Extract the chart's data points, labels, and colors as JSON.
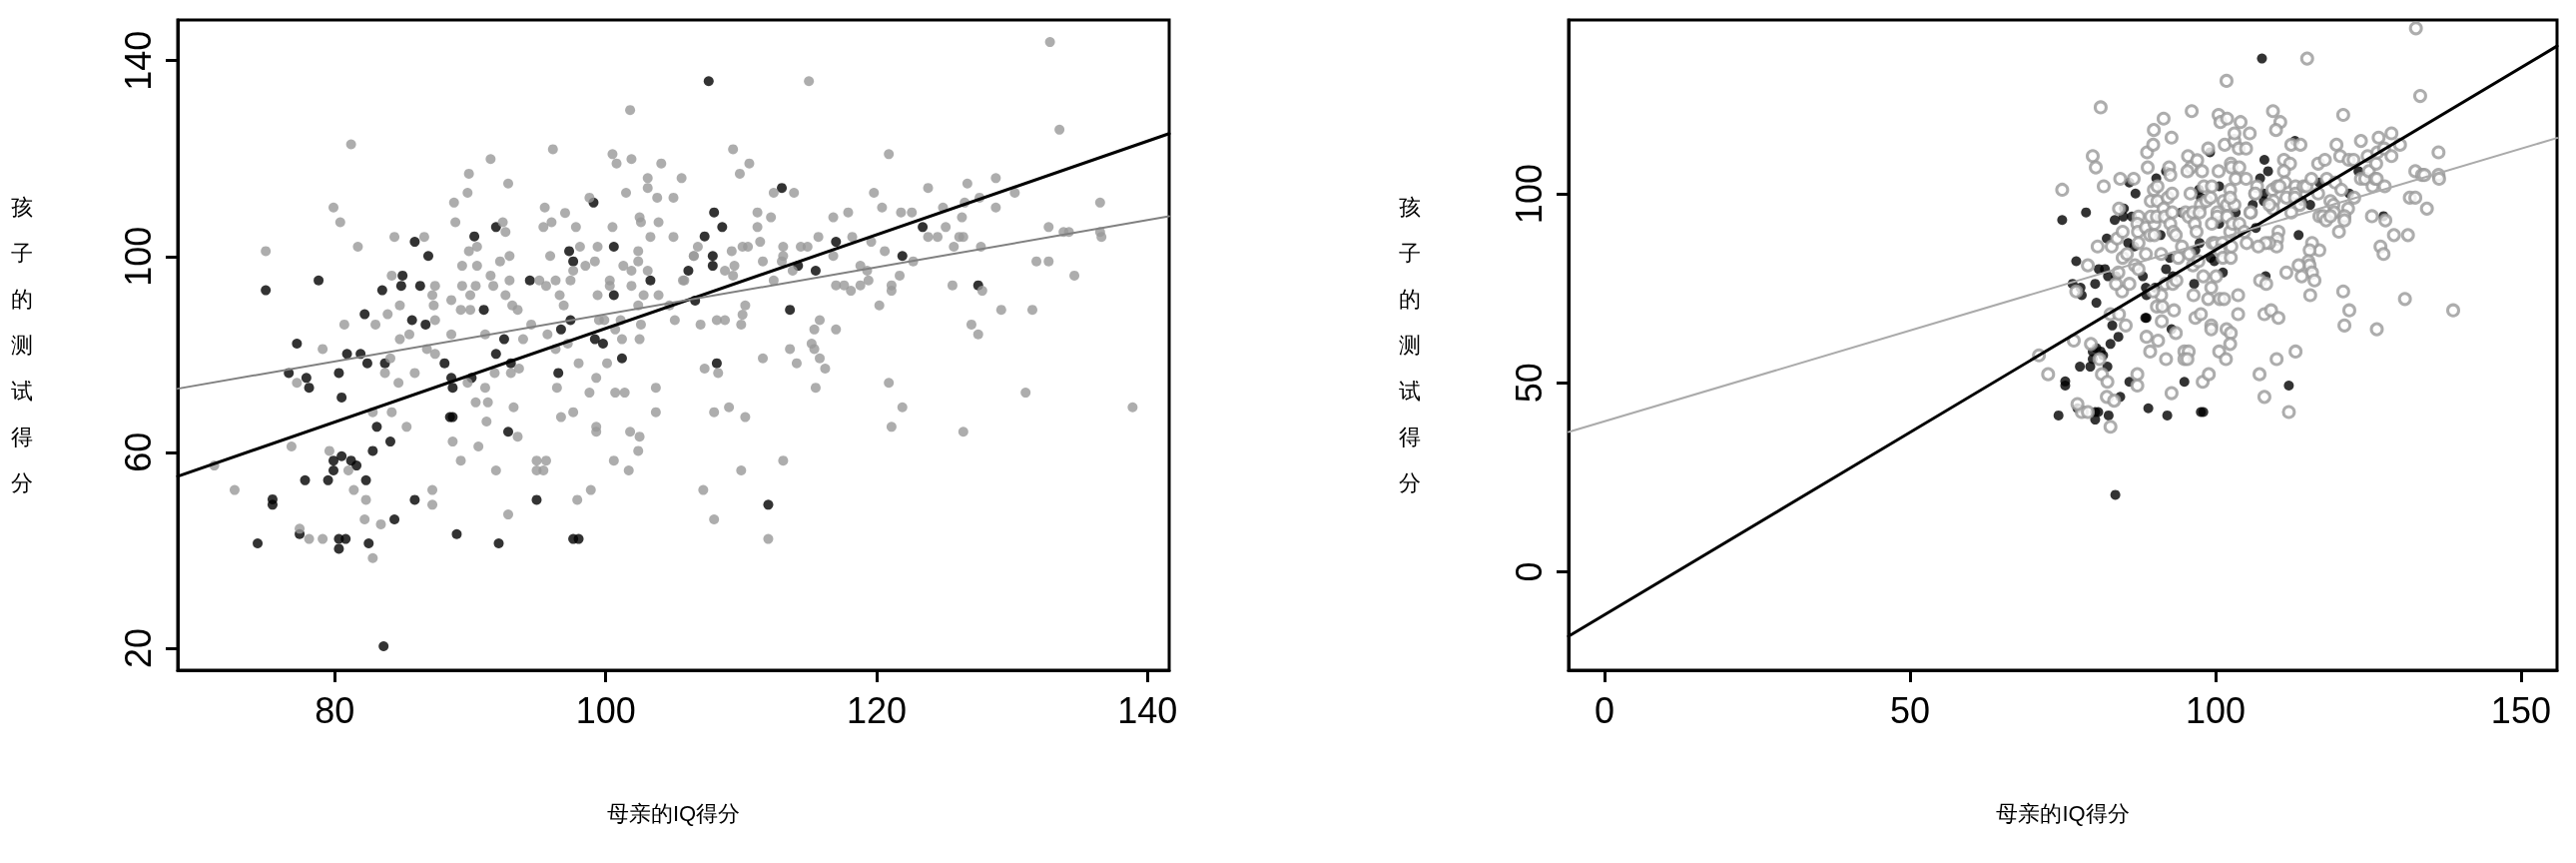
{
  "chart_data": [
    {
      "type": "scatter",
      "xlabel": "母亲的IQ得分",
      "ylabel": "孩子的测试得分",
      "xlim": [
        68.4,
        141.6
      ],
      "ylim": [
        15.5,
        148.3
      ],
      "xticks": [
        80,
        100,
        120,
        140
      ],
      "yticks": [
        20,
        60,
        100,
        140
      ],
      "marker": "circle",
      "series": [
        {
          "color": "#000000",
          "x": [
            74.9,
            78.8,
            77.2,
            76.6,
            77.9,
            78.1,
            80.3,
            80.5,
            80.9,
            81.9,
            82.4,
            82.2,
            83.5,
            83.7,
            85.0,
            84.9,
            85.9,
            86.9,
            86.3,
            85.7,
            86.7,
            83.1,
            84.1,
            82.8,
            79.9,
            80.5,
            81.2,
            81.6,
            79.9,
            79.5,
            77.8,
            82.3,
            75.4,
            75.4,
            74.3,
            77.4,
            80.3,
            80.8,
            80.3,
            82.5,
            84.4,
            85.9,
            83.6,
            88.1,
            88.6,
            88.7,
            88.5,
            88.7,
            90.1,
            90.3,
            91.9,
            91.0,
            92.5,
            91.9,
            93.0,
            92.8,
            89.0,
            92.1,
            94.4,
            94.9,
            96.5,
            96.7,
            97.4,
            97.3,
            97.6,
            97.6,
            98.0,
            99.1,
            99.2,
            99.8,
            100.6,
            100.6,
            101.2,
            103.3,
            106.1,
            106.6,
            107.6,
            113.0,
            108.0,
            108.6,
            107.3,
            107.9,
            107.9,
            114.2,
            115.5,
            117.0,
            113.6,
            108.2,
            112.0,
            121.9,
            123.4,
            127.5
          ],
          "values": [
            93.1,
            95.1,
            82.2,
            76.2,
            75.2,
            73.2,
            76.2,
            71.2,
            80.1,
            80.1,
            78.2,
            88.2,
            93.1,
            78.2,
            96.1,
            94.0,
            103.0,
            100.1,
            94.0,
            87.0,
            86.1,
            65.2,
            62.2,
            60.3,
            58.3,
            59.2,
            58.3,
            57.3,
            56.3,
            54.3,
            54.3,
            54.3,
            50.4,
            49.3,
            41.4,
            43.3,
            42.3,
            42.3,
            40.3,
            41.4,
            46.3,
            50.3,
            20.4,
            78.2,
            75.2,
            73.2,
            67.2,
            67.2,
            75.2,
            104.1,
            106.0,
            89.1,
            83.1,
            80.1,
            78.2,
            64.2,
            43.3,
            41.4,
            95.1,
            50.3,
            76.2,
            85.1,
            87.0,
            101.1,
            99.0,
            42.3,
            42.3,
            111.0,
            83.1,
            82.2,
            102.0,
            92.1,
            79.2,
            95.1,
            97.1,
            91.0,
            135.8,
            114.0,
            109.0,
            106.0,
            104.1,
            100.1,
            98.1,
            98.1,
            97.1,
            103.0,
            89.1,
            78.2,
            49.3,
            100.1,
            106.0,
            94.1
          ]
        },
        {
          "color": "#999999",
          "x": [
            71.1,
            72.6,
            74.9,
            76.8,
            77.2,
            79.1,
            79.9,
            80.4,
            81.2,
            81.7,
            80.7,
            79.6,
            81.0,
            81.4,
            82.3,
            82.2,
            82.8,
            78.1,
            79.1,
            77.4,
            83.4,
            82.8,
            84.2,
            85.3,
            84.7,
            85.9,
            83.7,
            84.1,
            84.8,
            85.5,
            83.0,
            83.9,
            84.8,
            84.2,
            84.4,
            86.6,
            87.4,
            87.2,
            87.3,
            88.6,
            87.4,
            86.8,
            87.4,
            87.2,
            87.2,
            88.7,
            89.3,
            90.6,
            91.2,
            90.4,
            91.3,
            91.1,
            89.8,
            88.6,
            89.3,
            90.0,
            90.0,
            89.4,
            90.4,
            89.4,
            90.5,
            89.9,
            90.5,
            88.9,
            88.8,
            89.8,
            89.9,
            91.5,
            92.8,
            92.4,
            92.6,
            92.2,
            92.9,
            91.5,
            91.7,
            92.9,
            92.6,
            93.1,
            93.5,
            91.1,
            91.8,
            93.0,
            93.6,
            93.9,
            94.5,
            93.2,
            93.5,
            91.9,
            92.8,
            94.9,
            95.6,
            94.9,
            95.4,
            96.1,
            95.5,
            96.0,
            95.4,
            95.9,
            95.1,
            95.6,
            96.3,
            96.6,
            96.9,
            95.7,
            96.3,
            96.4,
            96.7,
            97.6,
            97.2,
            98.0,
            97.9,
            98.9,
            98.8,
            99.3,
            99.3,
            99.3,
            97.0,
            97.8,
            98.1,
            97.6,
            97.4,
            98.5,
            99.2,
            99.4,
            98.8,
            100.5,
            100.8,
            101.9,
            101.8,
            101.5,
            100.5,
            101.3,
            101.9,
            100.3,
            100.3,
            101.9,
            99.4,
            99.5,
            99.9,
            101.1,
            100.7,
            101.2,
            100.1,
            100.7,
            101.4,
            100.6,
            101.7,
            101.8,
            102.5,
            102.4,
            103.7,
            103.7,
            102.5,
            102.6,
            102.4,
            102.8,
            103.9,
            103.1,
            102.4,
            102.4,
            103.3,
            102.5,
            102.6,
            103.9,
            103.1,
            103.1,
            103.8,
            104.1,
            105.0,
            105.0,
            105.6,
            105.8,
            105.1,
            104.7,
            106.5,
            115.0,
            109.4,
            110.6,
            109.9,
            112.4,
            113.9,
            111.2,
            112.2,
            111.2,
            111.4,
            109.3,
            110.1,
            110.5,
            106.8,
            106.5,
            109.5,
            109.4,
            108.8,
            105.7,
            111.6,
            113.1,
            113.1,
            113.0,
            113.8,
            112.4,
            114.4,
            114.9,
            115.7,
            116.8,
            117.9,
            118.2,
            116.8,
            117.0,
            117.6,
            118.1,
            117.0,
            115.8,
            115.4,
            115.2,
            115.4,
            115.8,
            116.2,
            115.5,
            114.1,
            113.6,
            111.6,
            110.3,
            110.1,
            110.0,
            108.8,
            108.2,
            107.0,
            107.3,
            108.3,
            108.0,
            109.1,
            110.3,
            110.0,
            107.2,
            108.0,
            112.0,
            113.1,
            119.8,
            120.4,
            120.9,
            119.6,
            120.6,
            121.8,
            122.6,
            123.8,
            123.8,
            124.5,
            125.1,
            124.9,
            125.7,
            126.1,
            126.4,
            126.3,
            126.5,
            126.7,
            127.6,
            127.7,
            128.8,
            128.8,
            130.2,
            122.7,
            121.7,
            118.8,
            119.3,
            119.4,
            118.8,
            121.1,
            121.1,
            120.2,
            125.6,
            127.8,
            129.2,
            131.5,
            127.0,
            127.5,
            120.9,
            121.9,
            121.1,
            126.4,
            131.0,
            138.9,
            132.8,
            133.5,
            132.7,
            133.8,
            134.2,
            131.8,
            132.7,
            134.6,
            136.5,
            136.5,
            136.6
          ],
          "values": [
            57.3,
            52.3,
            101.1,
            61.2,
            74.2,
            81.1,
            110.0,
            107.0,
            122.9,
            102.0,
            86.1,
            60.3,
            56.3,
            52.3,
            50.3,
            46.3,
            38.4,
            42.3,
            42.3,
            44.4,
            45.3,
            68.2,
            68.2,
            65.2,
            74.2,
            76.2,
            76.2,
            79.2,
            83.1,
            84.1,
            86.1,
            88.2,
            90.0,
            96.1,
            104.0,
            104.0,
            94.0,
            92.1,
            90.0,
            91.1,
            87.0,
            81.1,
            80.1,
            52.3,
            49.3,
            62.2,
            58.3,
            61.2,
            66.3,
            70.2,
            70.2,
            73.2,
            74.2,
            84.1,
            89.1,
            89.1,
            92.1,
            94.0,
            94.0,
            98.1,
            98.1,
            101.1,
            102.0,
            107.0,
            111.0,
            113.0,
            116.9,
            119.9,
            114.9,
            107.0,
            105.0,
            99.0,
            100.1,
            96.1,
            94.0,
            95.1,
            92.1,
            90.0,
            89.1,
            84.1,
            76.2,
            76.2,
            77.1,
            83.1,
            86.1,
            69.2,
            63.2,
            56.3,
            47.3,
            58.3,
            58.3,
            56.3,
            56.3,
            121.9,
            110.0,
            107.0,
            106.0,
            100.1,
            95.1,
            94.0,
            95.1,
            92.1,
            90.0,
            84.1,
            81.1,
            73.2,
            67.2,
            68.2,
            82.2,
            78.2,
            50.3,
            52.3,
            72.2,
            75.2,
            65.2,
            64.2,
            108.9,
            106.0,
            102.0,
            97.1,
            95.1,
            98.1,
            99.0,
            102.0,
            112.0,
            120.9,
            119.0,
            119.9,
            129.9,
            113.0,
            106.0,
            98.1,
            97.1,
            95.1,
            94.0,
            94.0,
            92.1,
            87.0,
            87.0,
            87.0,
            85.1,
            83.1,
            78.2,
            72.2,
            72.2,
            58.3,
            56.3,
            64.2,
            63.2,
            60.3,
            73.2,
            68.2,
            83.1,
            86.1,
            90.0,
            92.1,
            92.1,
            97.1,
            101.1,
            99.0,
            104.0,
            108.0,
            107.0,
            107.0,
            114.0,
            116.0,
            112.0,
            119.0,
            112.0,
            104.0,
            116.0,
            95.1,
            87.0,
            90.0,
            100.1,
            135.8,
            121.9,
            119.0,
            116.9,
            113.0,
            113.0,
            109.0,
            108.0,
            106.0,
            103.0,
            101.1,
            102.0,
            102.0,
            102.0,
            100.1,
            98.1,
            96.1,
            97.1,
            95.1,
            99.0,
            102.0,
            100.1,
            99.0,
            97.1,
            95.1,
            102.0,
            102.0,
            104.0,
            108.0,
            109.0,
            104.0,
            100.1,
            94.1,
            94.1,
            93.0,
            85.1,
            87.0,
            85.1,
            82.2,
            81.1,
            79.2,
            77.1,
            73.2,
            78.2,
            81.1,
            79.2,
            90.0,
            88.1,
            86.1,
            87.0,
            87.0,
            86.1,
            77.1,
            76.2,
            68.2,
            69.2,
            67.2,
            56.3,
            52.3,
            46.3,
            42.3,
            58.3,
            113.0,
            110.0,
            120.9,
            103.0,
            101.1,
            109.0,
            109.0,
            114.0,
            104.0,
            104.0,
            106.0,
            110.0,
            102.0,
            104.0,
            104.0,
            108.0,
            111.0,
            114.9,
            112.0,
            102.0,
            116.0,
            110.0,
            113.0,
            99.0,
            96.1,
            98.1,
            97.1,
            95.1,
            94.1,
            94.1,
            93.0,
            90.0,
            94.1,
            93.0,
            89.1,
            89.1,
            86.1,
            84.1,
            74.2,
            69.2,
            65.2,
            64.2,
            72.2,
            69.2,
            143.8,
            125.9,
            106.0,
            105.0,
            105.0,
            99.0,
            99.0,
            96.1,
            111.0,
            105.0,
            104.0
          ]
        },
        {
          "type": "line",
          "marker": "none",
          "color": "#000000",
          "x": [
            68.4,
            141.6
          ],
          "values": [
            55.1,
            125.1
          ]
        },
        {
          "type": "line",
          "marker": "none",
          "color": "#808080",
          "x": [
            68.4,
            141.6
          ],
          "values": [
            73.0,
            108.2
          ]
        }
      ]
    },
    {
      "type": "scatter",
      "xlabel": "母亲的IQ得分",
      "ylabel": "孩子的测试得分",
      "xlim": [
        -5.9,
        155.9
      ],
      "ylim": [
        -26,
        146
      ],
      "xticks": [
        0,
        50,
        100,
        150
      ],
      "yticks": [
        0,
        50,
        100
      ],
      "marker": "circle",
      "series": [
        {
          "color": "#000000",
          "x": [
            74.9,
            78.8,
            77.2,
            76.6,
            77.9,
            78.1,
            80.3,
            80.5,
            80.9,
            81.9,
            82.4,
            82.2,
            83.5,
            83.7,
            85.0,
            84.9,
            85.9,
            86.9,
            86.3,
            85.7,
            86.7,
            83.1,
            84.1,
            82.8,
            79.9,
            80.5,
            81.2,
            81.6,
            79.9,
            79.5,
            77.8,
            82.3,
            75.4,
            75.4,
            74.3,
            77.4,
            80.3,
            80.8,
            80.3,
            82.5,
            84.4,
            85.9,
            83.6,
            88.1,
            88.6,
            88.7,
            88.5,
            88.7,
            90.1,
            90.3,
            91.9,
            91.0,
            92.5,
            91.9,
            93.0,
            92.8,
            89.0,
            92.1,
            94.4,
            94.9,
            96.5,
            96.7,
            97.4,
            97.3,
            97.6,
            97.6,
            98.0,
            99.1,
            99.2,
            99.8,
            100.6,
            100.6,
            101.2,
            103.3,
            106.1,
            106.6,
            107.6,
            113.0,
            108.0,
            108.6,
            107.3,
            107.9,
            107.9,
            114.2,
            115.5,
            117.0,
            113.6,
            108.2,
            112.0,
            121.9,
            123.4,
            127.5
          ],
          "values": [
            93.1,
            95.1,
            82.2,
            76.2,
            75.2,
            73.2,
            76.2,
            71.2,
            80.1,
            80.1,
            78.2,
            88.2,
            93.1,
            78.2,
            96.1,
            94.0,
            103.0,
            100.1,
            94.0,
            87.0,
            86.1,
            65.2,
            62.2,
            60.3,
            58.3,
            59.2,
            58.3,
            57.3,
            56.3,
            54.3,
            54.3,
            54.3,
            50.4,
            49.3,
            41.4,
            43.3,
            42.3,
            42.3,
            40.3,
            41.4,
            46.3,
            50.3,
            20.4,
            78.2,
            75.2,
            73.2,
            67.2,
            67.2,
            75.2,
            104.1,
            106.0,
            89.1,
            83.1,
            80.1,
            78.2,
            64.2,
            43.3,
            41.4,
            95.1,
            50.3,
            76.2,
            85.1,
            87.0,
            101.1,
            99.0,
            42.3,
            42.3,
            111.0,
            83.1,
            82.2,
            102.0,
            92.1,
            79.2,
            95.1,
            97.1,
            91.0,
            135.8,
            114.0,
            109.0,
            106.0,
            104.1,
            100.1,
            98.1,
            98.1,
            97.1,
            103.0,
            89.1,
            78.2,
            49.3,
            100.1,
            106.0,
            94.1
          ]
        },
        {
          "color": "#999999",
          "x": [
            71.1,
            72.6,
            74.9,
            76.8,
            77.2,
            79.1,
            79.9,
            80.4,
            81.2,
            81.7,
            80.7,
            79.6,
            81.0,
            81.4,
            82.3,
            82.2,
            82.8,
            78.1,
            79.1,
            77.4,
            83.4,
            82.8,
            84.2,
            85.3,
            84.7,
            85.9,
            83.7,
            84.1,
            84.8,
            85.5,
            83.0,
            83.9,
            84.8,
            84.2,
            84.4,
            86.6,
            87.4,
            87.2,
            87.3,
            88.6,
            87.4,
            86.8,
            87.4,
            87.2,
            87.2,
            88.7,
            89.3,
            90.6,
            91.2,
            90.4,
            91.3,
            91.1,
            89.8,
            88.6,
            89.3,
            90.0,
            90.0,
            89.4,
            90.4,
            89.4,
            90.5,
            89.9,
            90.5,
            88.9,
            88.8,
            89.8,
            89.9,
            91.5,
            92.8,
            92.4,
            92.6,
            92.2,
            92.9,
            91.5,
            91.7,
            92.9,
            92.6,
            93.1,
            93.5,
            91.1,
            91.8,
            93.0,
            93.6,
            93.9,
            94.5,
            93.2,
            93.5,
            91.9,
            92.8,
            94.9,
            95.6,
            94.9,
            95.4,
            96.1,
            95.5,
            96.0,
            95.4,
            95.9,
            95.1,
            95.6,
            96.3,
            96.6,
            96.9,
            95.7,
            96.3,
            96.4,
            96.7,
            97.6,
            97.2,
            98.0,
            97.9,
            98.9,
            98.8,
            99.3,
            99.3,
            99.3,
            97.0,
            97.8,
            98.1,
            97.6,
            97.4,
            98.5,
            99.2,
            99.4,
            98.8,
            100.5,
            100.8,
            101.9,
            101.8,
            101.5,
            100.5,
            101.3,
            101.9,
            100.3,
            100.3,
            101.9,
            99.4,
            99.5,
            99.9,
            101.1,
            100.7,
            101.2,
            100.1,
            100.7,
            101.4,
            100.6,
            101.7,
            101.8,
            102.5,
            102.4,
            103.7,
            103.7,
            102.5,
            102.6,
            102.4,
            102.8,
            103.9,
            103.1,
            102.4,
            102.4,
            103.3,
            102.5,
            102.6,
            103.9,
            103.1,
            103.1,
            103.8,
            104.1,
            105.0,
            105.0,
            105.6,
            105.8,
            105.1,
            104.7,
            106.5,
            115.0,
            109.4,
            110.6,
            109.9,
            112.4,
            113.9,
            111.2,
            112.2,
            111.2,
            111.4,
            109.3,
            110.1,
            110.5,
            106.8,
            106.5,
            109.5,
            109.4,
            108.8,
            105.7,
            111.6,
            113.1,
            113.1,
            113.0,
            113.8,
            112.4,
            114.4,
            114.9,
            115.7,
            116.8,
            117.9,
            118.2,
            116.8,
            117.0,
            117.6,
            118.1,
            117.0,
            115.8,
            115.4,
            115.2,
            115.4,
            115.8,
            116.2,
            115.5,
            114.1,
            113.6,
            111.6,
            110.3,
            110.1,
            110.0,
            108.8,
            108.2,
            107.0,
            107.3,
            108.3,
            108.0,
            109.1,
            110.3,
            110.0,
            107.2,
            108.0,
            112.0,
            113.1,
            119.8,
            120.4,
            120.9,
            119.6,
            120.6,
            121.8,
            122.6,
            123.8,
            123.8,
            124.5,
            125.1,
            124.9,
            125.7,
            126.1,
            126.4,
            126.3,
            126.5,
            126.7,
            127.6,
            127.7,
            128.8,
            128.8,
            130.2,
            122.7,
            121.7,
            118.8,
            119.3,
            119.4,
            118.8,
            121.1,
            121.1,
            120.2,
            125.6,
            127.8,
            129.2,
            131.5,
            127.0,
            127.5,
            120.9,
            121.9,
            121.1,
            126.4,
            131.0,
            138.9,
            132.8,
            133.5,
            132.7,
            133.8,
            134.2,
            131.8,
            132.7,
            134.6,
            136.5,
            136.5,
            136.6
          ],
          "values": [
            57.3,
            52.3,
            101.1,
            61.2,
            74.2,
            81.1,
            110.0,
            107.0,
            122.9,
            102.0,
            86.1,
            60.3,
            56.3,
            52.3,
            50.3,
            46.3,
            38.4,
            42.3,
            42.3,
            44.4,
            45.3,
            68.2,
            68.2,
            65.2,
            74.2,
            76.2,
            76.2,
            79.2,
            83.1,
            84.1,
            86.1,
            88.2,
            90.0,
            96.1,
            104.0,
            104.0,
            94.0,
            92.1,
            90.0,
            91.1,
            87.0,
            81.1,
            80.1,
            52.3,
            49.3,
            62.2,
            58.3,
            61.2,
            66.3,
            70.2,
            70.2,
            73.2,
            74.2,
            84.1,
            89.1,
            89.1,
            92.1,
            94.0,
            94.0,
            98.1,
            98.1,
            101.1,
            102.0,
            107.0,
            111.0,
            113.0,
            116.9,
            119.9,
            114.9,
            107.0,
            105.0,
            99.0,
            100.1,
            96.1,
            94.0,
            95.1,
            92.1,
            90.0,
            89.1,
            84.1,
            76.2,
            76.2,
            77.1,
            83.1,
            86.1,
            69.2,
            63.2,
            56.3,
            47.3,
            58.3,
            58.3,
            56.3,
            56.3,
            121.9,
            110.0,
            107.0,
            106.0,
            100.1,
            95.1,
            94.0,
            95.1,
            92.1,
            90.0,
            84.1,
            81.1,
            73.2,
            67.2,
            68.2,
            82.2,
            78.2,
            50.3,
            52.3,
            72.2,
            75.2,
            65.2,
            64.2,
            108.9,
            106.0,
            102.0,
            97.1,
            95.1,
            98.1,
            99.0,
            102.0,
            112.0,
            120.9,
            119.0,
            119.9,
            129.9,
            113.0,
            106.0,
            98.1,
            97.1,
            95.1,
            94.0,
            94.0,
            92.1,
            87.0,
            87.0,
            87.0,
            85.1,
            83.1,
            78.2,
            72.2,
            72.2,
            58.3,
            56.3,
            64.2,
            63.2,
            60.3,
            73.2,
            68.2,
            83.1,
            86.1,
            90.0,
            92.1,
            92.1,
            97.1,
            101.1,
            99.0,
            104.0,
            108.0,
            107.0,
            107.0,
            114.0,
            116.0,
            112.0,
            119.0,
            112.0,
            104.0,
            116.0,
            95.1,
            87.0,
            90.0,
            100.1,
            135.8,
            121.9,
            119.0,
            116.9,
            113.0,
            113.0,
            109.0,
            108.0,
            106.0,
            103.0,
            101.1,
            102.0,
            102.0,
            102.0,
            100.1,
            98.1,
            96.1,
            97.1,
            95.1,
            99.0,
            102.0,
            100.1,
            99.0,
            97.1,
            95.1,
            102.0,
            102.0,
            104.0,
            108.0,
            109.0,
            104.0,
            100.1,
            94.1,
            94.1,
            93.0,
            85.1,
            87.0,
            85.1,
            82.2,
            81.1,
            79.2,
            77.1,
            73.2,
            78.2,
            81.1,
            79.2,
            90.0,
            88.1,
            86.1,
            87.0,
            87.0,
            86.1,
            77.1,
            76.2,
            68.2,
            69.2,
            67.2,
            56.3,
            52.3,
            46.3,
            42.3,
            58.3,
            113.0,
            110.0,
            120.9,
            103.0,
            101.1,
            109.0,
            109.0,
            114.0,
            104.0,
            104.0,
            106.0,
            110.0,
            102.0,
            104.0,
            104.0,
            108.0,
            111.0,
            114.9,
            112.0,
            102.0,
            116.0,
            110.0,
            113.0,
            99.0,
            96.1,
            98.1,
            97.1,
            95.1,
            94.1,
            94.1,
            93.0,
            90.0,
            94.1,
            93.0,
            89.1,
            89.1,
            86.1,
            84.1,
            74.2,
            69.2,
            65.2,
            64.2,
            72.2,
            69.2,
            143.8,
            125.9,
            106.0,
            105.0,
            105.0,
            99.0,
            99.0,
            96.1,
            111.0,
            105.0,
            104.0
          ]
        },
        {
          "type": "line",
          "marker": "none",
          "color": "#000000",
          "x": [
            -5.9,
            155.9
          ],
          "values": [
            -17.0,
            139.1
          ]
        },
        {
          "type": "line",
          "marker": "none",
          "color": "#aaaaaa",
          "x": [
            -5.9,
            155.9
          ],
          "values": [
            37.0,
            114.8
          ]
        }
      ]
    }
  ]
}
